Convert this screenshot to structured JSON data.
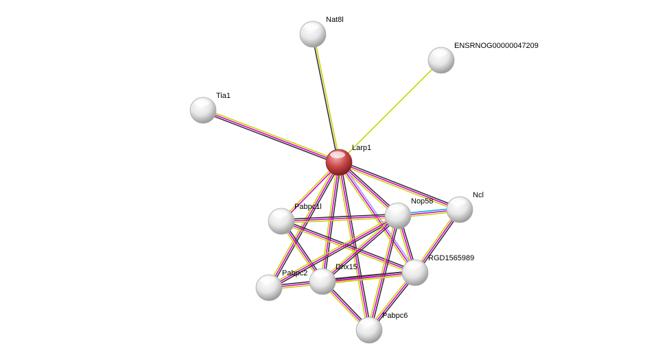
{
  "evidence_colors": {
    "coexpression": "#333333",
    "experiments": "#d400d4",
    "textmining": "#c8d400",
    "database": "#00b0e0",
    "homology": "#9999ff"
  },
  "query_node_color": "#c0393b",
  "nodes": [
    {
      "id": "Nat8l",
      "label": "Nat8l",
      "query": false
    },
    {
      "id": "ENSRNOG00000047209",
      "label": "ENSRNOG00000047209",
      "query": false
    },
    {
      "id": "Tia1",
      "label": "Tia1",
      "query": false
    },
    {
      "id": "Larp1",
      "label": "Larp1",
      "query": true
    },
    {
      "id": "Ncl",
      "label": "Ncl",
      "query": false
    },
    {
      "id": "Nop58",
      "label": "Nop58",
      "query": false
    },
    {
      "id": "Pabpc1l",
      "label": "Pabpc1l",
      "query": false
    },
    {
      "id": "RGD1565989",
      "label": "RGD1565989",
      "query": false
    },
    {
      "id": "Pabpc2",
      "label": "Pabpc2",
      "query": false
    },
    {
      "id": "Dhx15",
      "label": "Dhx15",
      "query": false
    },
    {
      "id": "Pabpc6",
      "label": "Pabpc6",
      "query": false
    }
  ],
  "edges": [
    {
      "a": "Larp1",
      "b": "Nat8l",
      "evidence": [
        "coexpression",
        "textmining"
      ]
    },
    {
      "a": "Larp1",
      "b": "ENSRNOG00000047209",
      "evidence": [
        "textmining"
      ]
    },
    {
      "a": "Larp1",
      "b": "Tia1",
      "evidence": [
        "coexpression",
        "experiments",
        "textmining"
      ]
    },
    {
      "a": "Larp1",
      "b": "Ncl",
      "evidence": [
        "coexpression",
        "experiments",
        "textmining"
      ]
    },
    {
      "a": "Larp1",
      "b": "Nop58",
      "evidence": [
        "coexpression",
        "experiments",
        "textmining"
      ]
    },
    {
      "a": "Larp1",
      "b": "Pabpc1l",
      "evidence": [
        "experiments",
        "textmining"
      ]
    },
    {
      "a": "Larp1",
      "b": "Pabpc2",
      "evidence": [
        "coexpression",
        "experiments",
        "textmining"
      ]
    },
    {
      "a": "Larp1",
      "b": "Dhx15",
      "evidence": [
        "coexpression",
        "experiments",
        "textmining"
      ]
    },
    {
      "a": "Larp1",
      "b": "Pabpc6",
      "evidence": [
        "coexpression",
        "experiments",
        "textmining"
      ]
    },
    {
      "a": "Larp1",
      "b": "RGD1565989",
      "evidence": [
        "homology",
        "experiments",
        "textmining"
      ]
    },
    {
      "a": "Nop58",
      "b": "Ncl",
      "evidence": [
        "database",
        "experiments",
        "textmining"
      ]
    },
    {
      "a": "Pabpc1l",
      "b": "Nop58",
      "evidence": [
        "coexpression",
        "experiments",
        "textmining"
      ]
    },
    {
      "a": "Pabpc1l",
      "b": "Dhx15",
      "evidence": [
        "coexpression",
        "experiments",
        "textmining"
      ]
    },
    {
      "a": "Pabpc1l",
      "b": "RGD1565989",
      "evidence": [
        "coexpression",
        "experiments",
        "textmining"
      ]
    },
    {
      "a": "Nop58",
      "b": "Pabpc2",
      "evidence": [
        "coexpression",
        "experiments",
        "textmining"
      ]
    },
    {
      "a": "Nop58",
      "b": "Dhx15",
      "evidence": [
        "coexpression",
        "experiments",
        "textmining"
      ]
    },
    {
      "a": "Nop58",
      "b": "RGD1565989",
      "evidence": [
        "coexpression",
        "experiments",
        "textmining"
      ]
    },
    {
      "a": "Nop58",
      "b": "Pabpc6",
      "evidence": [
        "coexpression",
        "experiments",
        "textmining"
      ]
    },
    {
      "a": "Ncl",
      "b": "RGD1565989",
      "evidence": [
        "coexpression",
        "experiments",
        "textmining"
      ]
    },
    {
      "a": "Pabpc2",
      "b": "RGD1565989",
      "evidence": [
        "coexpression",
        "experiments",
        "textmining"
      ]
    },
    {
      "a": "Dhx15",
      "b": "RGD1565989",
      "evidence": [
        "coexpression",
        "experiments",
        "textmining"
      ]
    },
    {
      "a": "Dhx15",
      "b": "Pabpc6",
      "evidence": [
        "coexpression",
        "experiments",
        "textmining"
      ]
    },
    {
      "a": "RGD1565989",
      "b": "Pabpc6",
      "evidence": [
        "coexpression",
        "experiments",
        "textmining"
      ]
    }
  ]
}
